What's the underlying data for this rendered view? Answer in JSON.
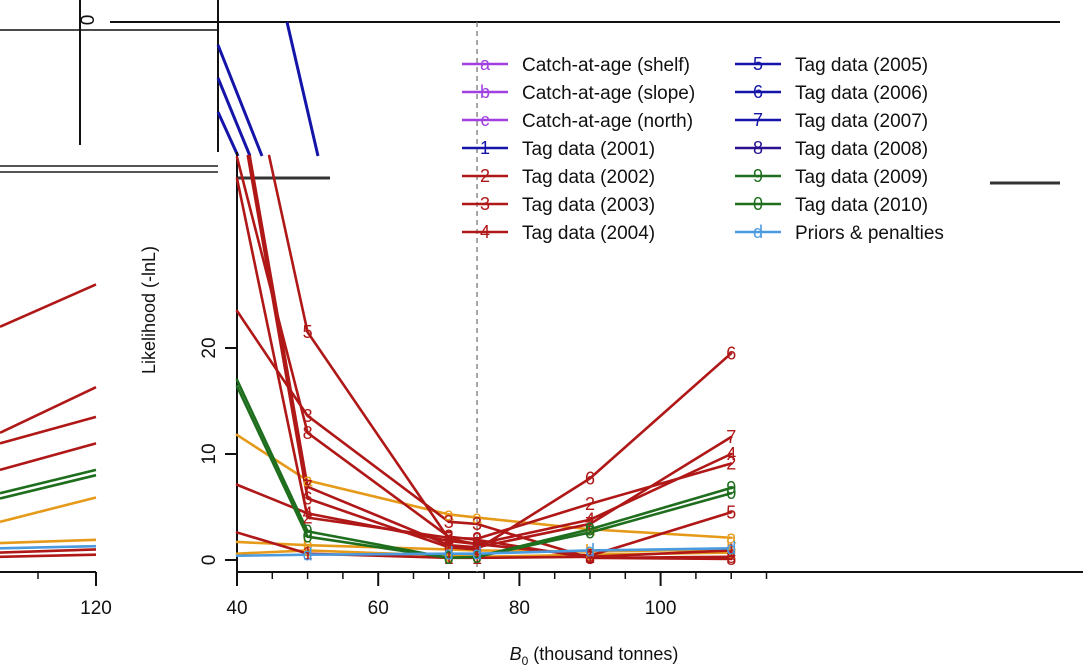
{
  "chart_data": {
    "type": "line",
    "xlabel": "B",
    "xlabel_sub": "0",
    "xlabel_rest": " (thousand tonnes)",
    "ylabel": "Likelihood (-lnL)",
    "x_ticks": [
      40,
      60,
      80,
      100
    ],
    "left_panel_tick": "120",
    "y_ticks": [
      0,
      10,
      20
    ],
    "xlim": [
      40,
      115
    ],
    "ylim": [
      0,
      29
    ],
    "vline_x": 74,
    "x": [
      40,
      50,
      70,
      74,
      90,
      110
    ],
    "grid": false,
    "legend_position": "top-right",
    "series": [
      {
        "name": "Catch-at-age (shelf)",
        "symbol": "a",
        "color": "#E69A1A",
        "values": [
          11.8,
          7.5,
          4.3,
          4.0,
          2.9,
          2.1
        ]
      },
      {
        "name": "Catch-at-age (slope)",
        "symbol": "b",
        "color": "#E69A1A",
        "values": [
          1.7,
          1.4,
          1.0,
          0.9,
          0.8,
          1.0
        ]
      },
      {
        "name": "Catch-at-age (north)",
        "symbol": "c",
        "color": "#E69A1A",
        "values": [
          0.6,
          0.9,
          0.4,
          0.3,
          0.5,
          0.7
        ]
      },
      {
        "name": "Tag data (2001)",
        "symbol": "1",
        "color": "#B01818",
        "values": [
          2.6,
          0.6,
          0.2,
          0.2,
          0.3,
          0.9
        ]
      },
      {
        "name": "Tag data (2002)",
        "symbol": "2",
        "color": "#B01818",
        "values": [
          36,
          4.0,
          2.1,
          2.0,
          5.3,
          9.1
        ]
      },
      {
        "name": "Tag data (2003)",
        "symbol": "3",
        "color": "#B01818",
        "values": [
          23.5,
          13.6,
          3.6,
          3.4,
          0.2,
          0.1
        ]
      },
      {
        "name": "Tag data (2004)",
        "symbol": "4",
        "color": "#B01818",
        "values": [
          7.1,
          4.4,
          1.8,
          1.5,
          3.8,
          10.0
        ]
      },
      {
        "name": "Tag data (2005)",
        "symbol": "5",
        "color": "#B01818",
        "values": [
          52,
          21.5,
          2.0,
          1.5,
          0.4,
          4.5
        ]
      },
      {
        "name": "Tag data (2006)",
        "symbol": "6",
        "color": "#B01818",
        "values": [
          44,
          5.8,
          1.2,
          1.0,
          7.7,
          19.5
        ]
      },
      {
        "name": "Tag data (2007)",
        "symbol": "7",
        "color": "#B01818",
        "values": [
          45,
          6.9,
          1.4,
          1.2,
          3.4,
          11.6
        ]
      },
      {
        "name": "Tag data (2008)",
        "symbol": "8",
        "color": "#B01818",
        "values": [
          38,
          12.0,
          2.2,
          1.9,
          0.2,
          0.3
        ]
      },
      {
        "name": "Tag data (2009)",
        "symbol": "9",
        "color": "#1E6E1E",
        "values": [
          17.0,
          2.7,
          0.2,
          0.3,
          2.9,
          6.8
        ]
      },
      {
        "name": "Tag data (2010)",
        "symbol": "0",
        "color": "#1E6E1E",
        "values": [
          16.4,
          2.2,
          0.2,
          0.3,
          2.6,
          6.3
        ]
      },
      {
        "name": "Priors & penalties",
        "symbol": "d",
        "color": "#4A9AE0",
        "values": [
          0.4,
          0.5,
          0.6,
          0.6,
          0.9,
          1.1
        ]
      }
    ],
    "top_panel_tick": "0"
  },
  "colors": {
    "red": "#B01818",
    "green": "#1E6E1E",
    "orange": "#E69A1A",
    "blue": "#1414A8",
    "purple": "#A040E0",
    "light_blue": "#4A9AE0"
  }
}
